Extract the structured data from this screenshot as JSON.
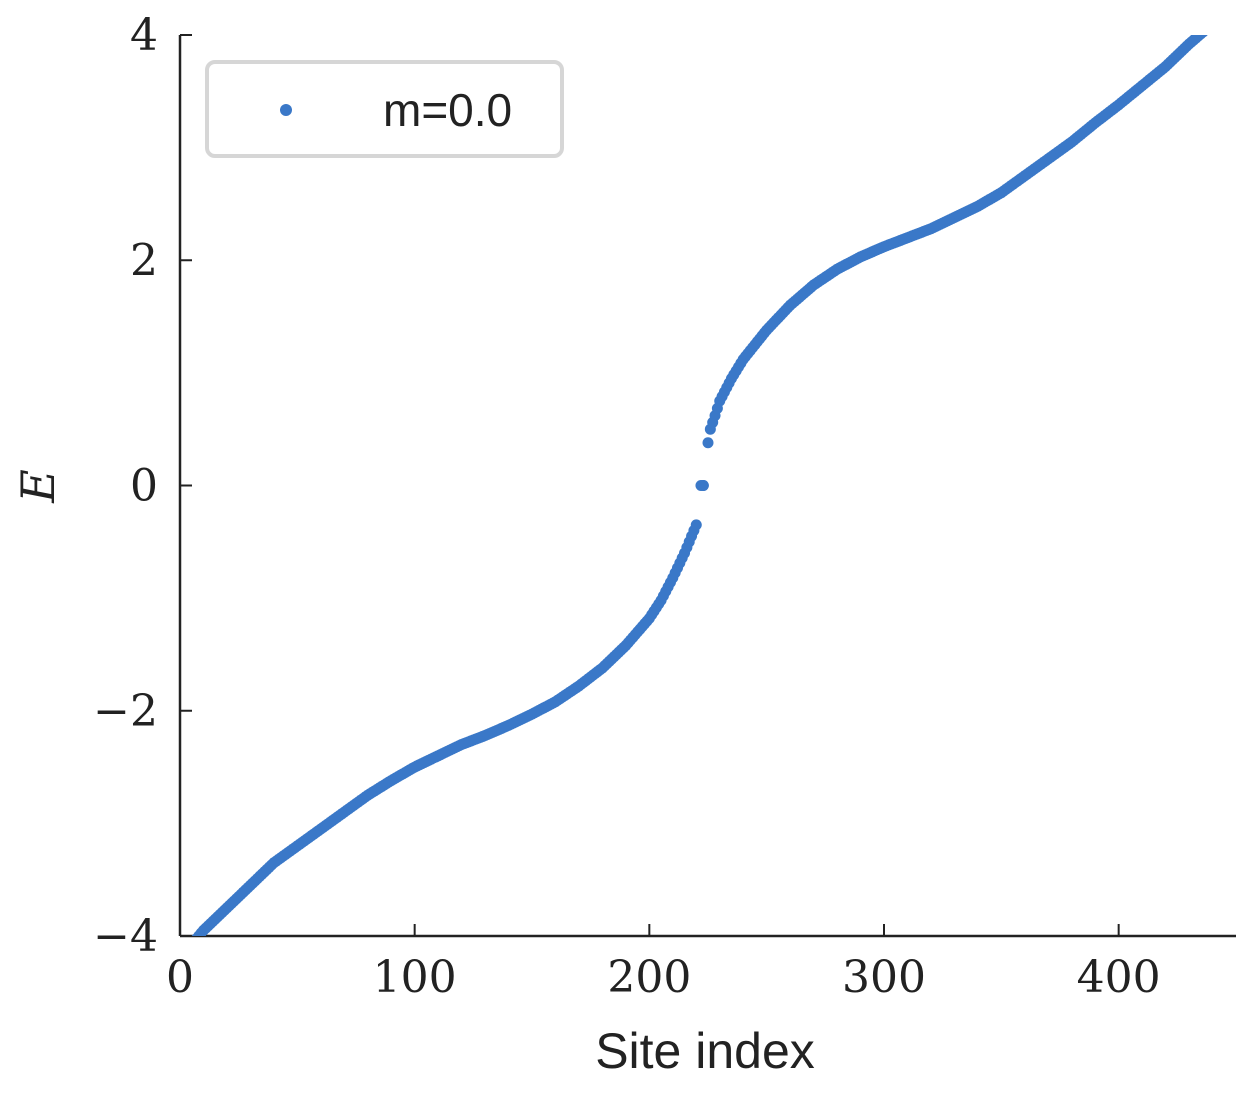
{
  "chart_data": {
    "type": "scatter",
    "xlabel": "Site index",
    "ylabel": "E",
    "xlim": [
      0,
      450
    ],
    "ylim": [
      -4,
      4
    ],
    "xticks": [
      0,
      100,
      200,
      300,
      400
    ],
    "yticks": [
      -4,
      -2,
      0,
      2,
      4
    ],
    "xtick_labels": [
      "0",
      "100",
      "200",
      "300",
      "400"
    ],
    "ytick_labels": [
      "−4",
      "−2",
      "0",
      "2",
      "4"
    ],
    "grid": false,
    "legend_position": "top-left",
    "series": [
      {
        "name": "m=0.0",
        "color": "#3a78c8",
        "x": [
          0,
          10,
          20,
          30,
          40,
          50,
          60,
          70,
          80,
          90,
          100,
          110,
          120,
          130,
          140,
          150,
          160,
          170,
          180,
          190,
          200,
          205,
          210,
          215,
          220,
          222,
          223,
          225,
          226,
          228,
          230,
          235,
          240,
          250,
          260,
          270,
          280,
          290,
          300,
          310,
          320,
          330,
          340,
          350,
          360,
          370,
          380,
          390,
          400,
          410,
          420,
          430,
          440,
          450
        ],
        "y": [
          -4.2,
          -3.95,
          -3.75,
          -3.55,
          -3.35,
          -3.2,
          -3.05,
          -2.9,
          -2.75,
          -2.62,
          -2.5,
          -2.4,
          -2.3,
          -2.22,
          -2.13,
          -2.03,
          -1.92,
          -1.78,
          -1.62,
          -1.42,
          -1.18,
          -1.02,
          -0.82,
          -0.6,
          -0.35,
          0.0,
          0.0,
          0.38,
          0.5,
          0.62,
          0.75,
          0.95,
          1.12,
          1.38,
          1.6,
          1.78,
          1.92,
          2.03,
          2.12,
          2.2,
          2.28,
          2.38,
          2.48,
          2.6,
          2.75,
          2.9,
          3.05,
          3.22,
          3.38,
          3.55,
          3.72,
          3.92,
          4.1,
          4.3
        ]
      }
    ]
  }
}
